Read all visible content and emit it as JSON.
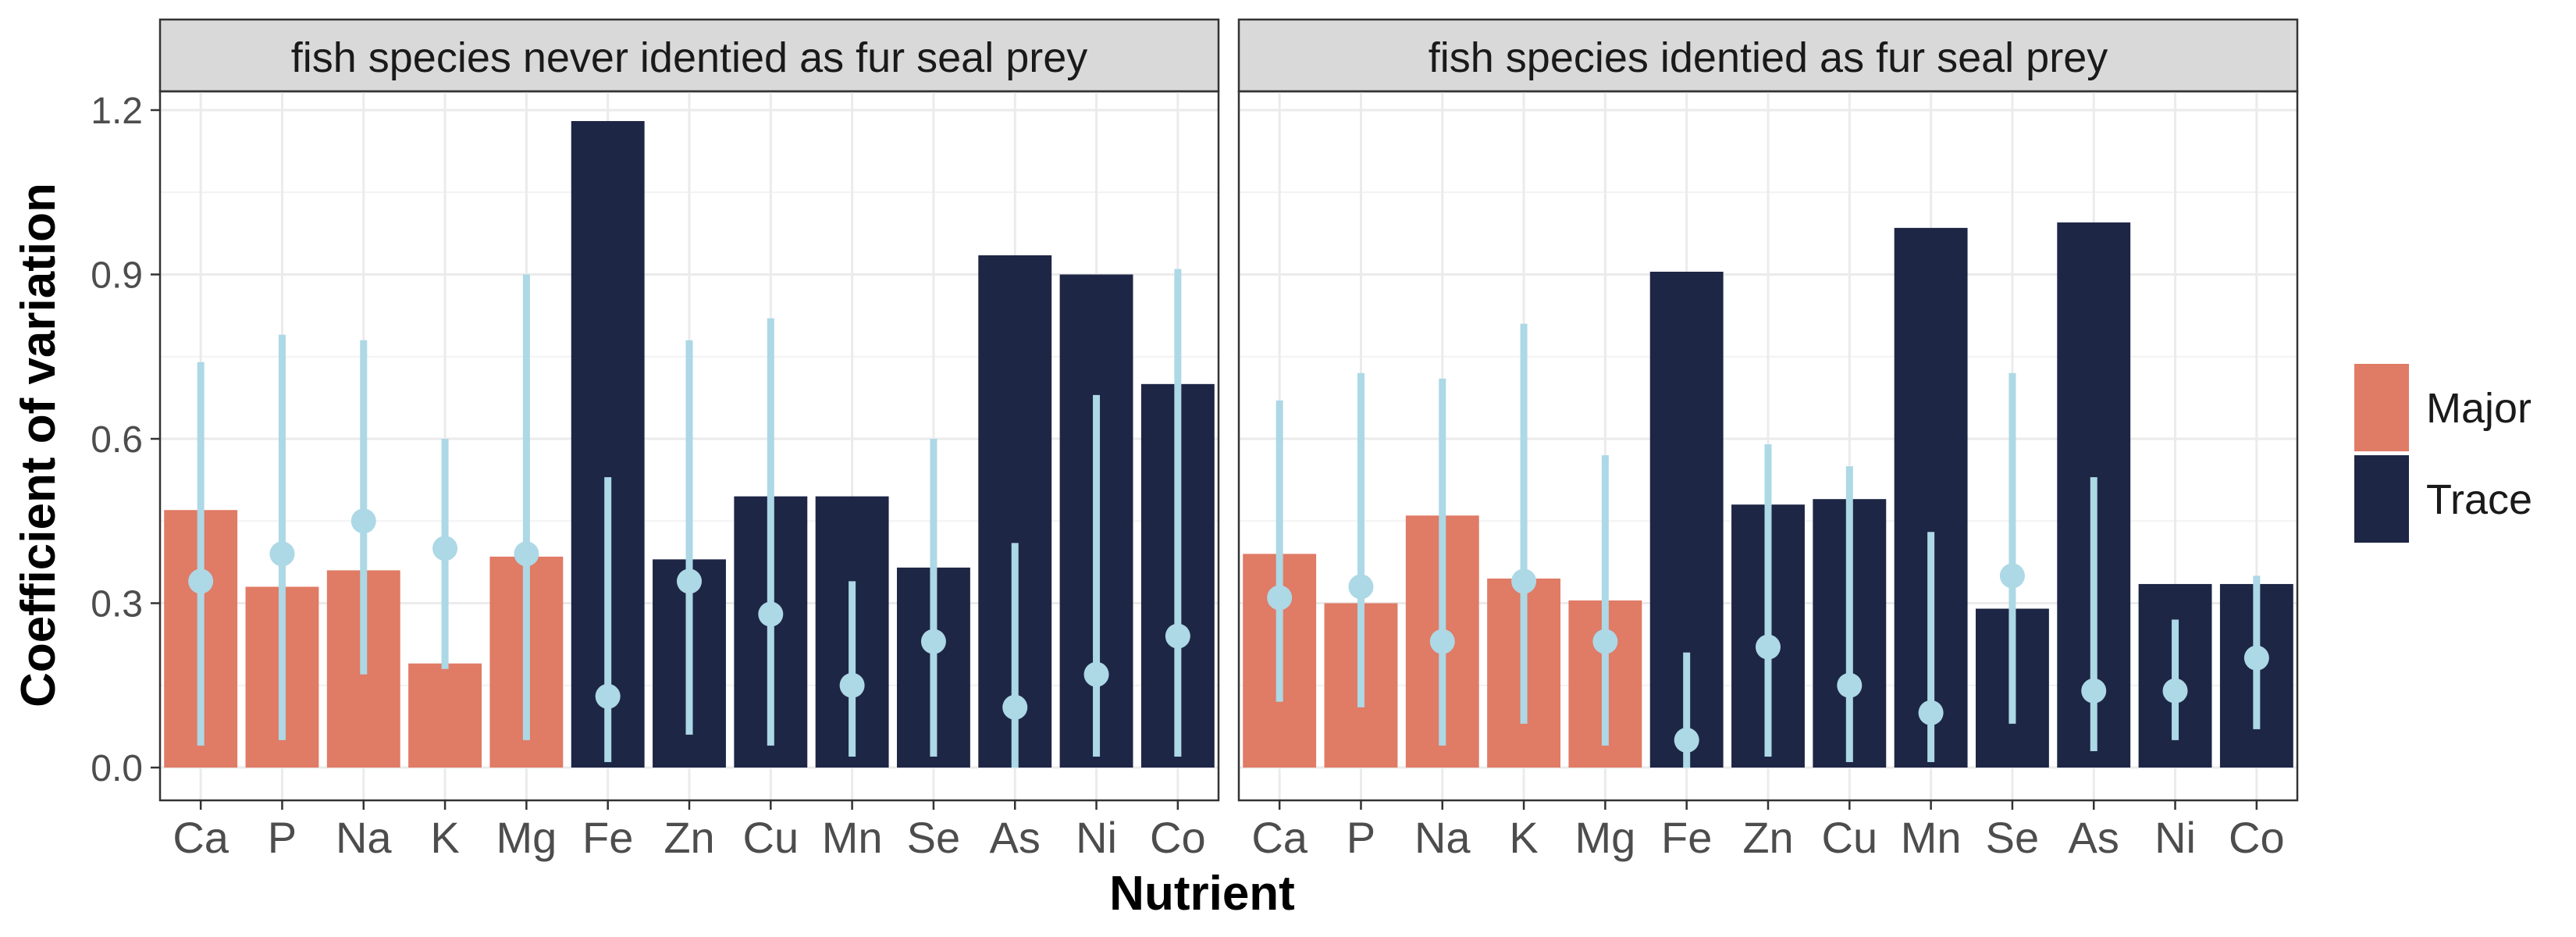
{
  "chart_data": {
    "type": "bar",
    "ylabel": "Coefficient of variation",
    "xlabel": "Nutrient",
    "ylim": [
      0,
      1.3
    ],
    "yticks": [
      "0.0",
      "0.3",
      "0.6",
      "0.9",
      "1.2"
    ],
    "categories": [
      "Ca",
      "P",
      "Na",
      "K",
      "Mg",
      "Fe",
      "Zn",
      "Cu",
      "Mn",
      "Se",
      "As",
      "Ni",
      "Co"
    ],
    "category_group": [
      "Major",
      "Major",
      "Major",
      "Major",
      "Major",
      "Trace",
      "Trace",
      "Trace",
      "Trace",
      "Trace",
      "Trace",
      "Trace",
      "Trace"
    ],
    "legend": [
      {
        "label": "Major",
        "color": "#E07B65"
      },
      {
        "label": "Trace",
        "color": "#1E2645"
      }
    ],
    "legend_position": "right",
    "point_color": "#ADD8E6",
    "grid": true,
    "panels": [
      {
        "title": "fish species never identied as fur seal prey",
        "values": [
          0.47,
          0.33,
          0.36,
          0.19,
          0.385,
          1.18,
          0.38,
          0.495,
          0.495,
          0.365,
          0.935,
          0.9,
          0.7
        ],
        "points": [
          0.34,
          0.39,
          0.45,
          0.4,
          0.39,
          0.13,
          0.34,
          0.28,
          0.15,
          0.23,
          0.11,
          0.17,
          0.24
        ],
        "lower": [
          0.04,
          0.05,
          0.17,
          0.18,
          0.05,
          0.01,
          0.06,
          0.04,
          0.02,
          0.02,
          0.0,
          0.02,
          0.02
        ],
        "upper": [
          0.74,
          0.79,
          0.78,
          0.6,
          0.9,
          0.53,
          0.78,
          0.82,
          0.34,
          0.6,
          0.41,
          0.68,
          0.91
        ]
      },
      {
        "title": "fish species identied as fur seal prey",
        "values": [
          0.39,
          0.3,
          0.46,
          0.345,
          0.305,
          0.905,
          0.48,
          0.49,
          0.985,
          0.29,
          0.995,
          0.335,
          0.335
        ],
        "points": [
          0.31,
          0.33,
          0.23,
          0.34,
          0.23,
          0.05,
          0.22,
          0.15,
          0.1,
          0.35,
          0.14,
          0.14,
          0.2
        ],
        "lower": [
          0.12,
          0.11,
          0.04,
          0.08,
          0.04,
          0.0,
          0.02,
          0.01,
          0.01,
          0.08,
          0.03,
          0.05,
          0.07
        ],
        "upper": [
          0.67,
          0.72,
          0.71,
          0.81,
          0.57,
          0.21,
          0.59,
          0.55,
          0.43,
          0.72,
          0.53,
          0.27,
          0.35
        ]
      }
    ]
  }
}
